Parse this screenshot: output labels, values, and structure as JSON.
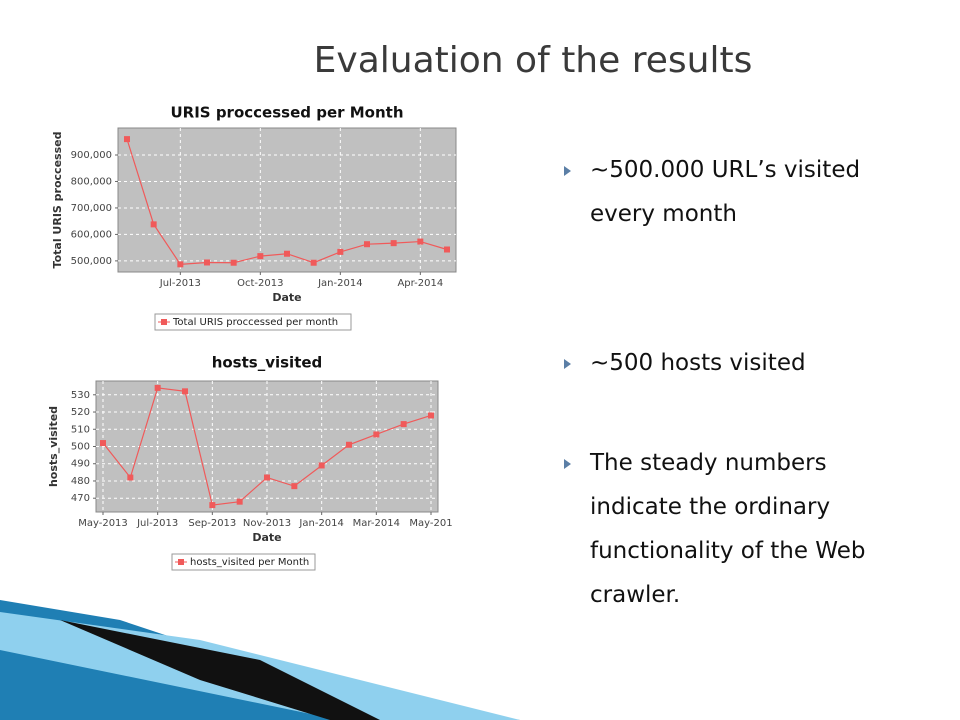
{
  "title": "Evaluation of the results",
  "bullets": [
    "~500.000 URL’s visited every month",
    "~500 hosts visited",
    "The steady numbers indicate the ordinary functionality of the Web crawler."
  ],
  "chart_data": [
    {
      "type": "line",
      "title": "URIS proccessed per Month",
      "x_label": "Date",
      "y_label": "Total URIS proccessed",
      "x": [
        "May-2013",
        "Jun-2013",
        "Jul-2013",
        "Aug-2013",
        "Sep-2013",
        "Oct-2013",
        "Nov-2013",
        "Dec-2013",
        "Jan-2014",
        "Feb-2014",
        "Mar-2014",
        "Apr-2014",
        "May-2014"
      ],
      "series": [
        {
          "name": "Total URIS proccessed per month",
          "color": "#f05a5a",
          "values": [
            960000,
            638000,
            487000,
            494000,
            493000,
            518000,
            527000,
            493000,
            534000,
            563000,
            567000,
            573000,
            543000
          ]
        }
      ],
      "xticks": [
        "Jul-2013",
        "Oct-2013",
        "Jan-2014",
        "Apr-2014"
      ],
      "ylim": [
        458000,
        1002000
      ],
      "yticks": [
        {
          "value": 500000,
          "label": "500,000"
        },
        {
          "value": 600000,
          "label": "600,000"
        },
        {
          "value": 700000,
          "label": "700,000"
        },
        {
          "value": 800000,
          "label": "800,000"
        },
        {
          "value": 900000,
          "label": "900,000"
        }
      ],
      "grid": true
    },
    {
      "type": "line",
      "title": "hosts_visited",
      "x_label": "Date",
      "y_label": "hosts_visited",
      "x": [
        "May-2013",
        "Jun-2013",
        "Jul-2013",
        "Aug-2013",
        "Sep-2013",
        "Oct-2013",
        "Nov-2013",
        "Dec-2013",
        "Jan-2014",
        "Feb-2014",
        "Mar-2014",
        "Apr-2014",
        "May-2014"
      ],
      "series": [
        {
          "name": "hosts_visited per Month",
          "color": "#f05a5a",
          "values": [
            502,
            482,
            534,
            532,
            466,
            468,
            482,
            477,
            489,
            501,
            507,
            513,
            518
          ]
        }
      ],
      "xticks": [
        "May-2013",
        "Jul-2013",
        "Sep-2013",
        "Nov-2013",
        "Jan-2014",
        "Mar-2014",
        {
          "value": "May-2014",
          "label": "May-201"
        }
      ],
      "ylim": [
        462,
        538
      ],
      "yticks": [
        470,
        480,
        490,
        500,
        510,
        520,
        530
      ],
      "grid": true
    }
  ]
}
